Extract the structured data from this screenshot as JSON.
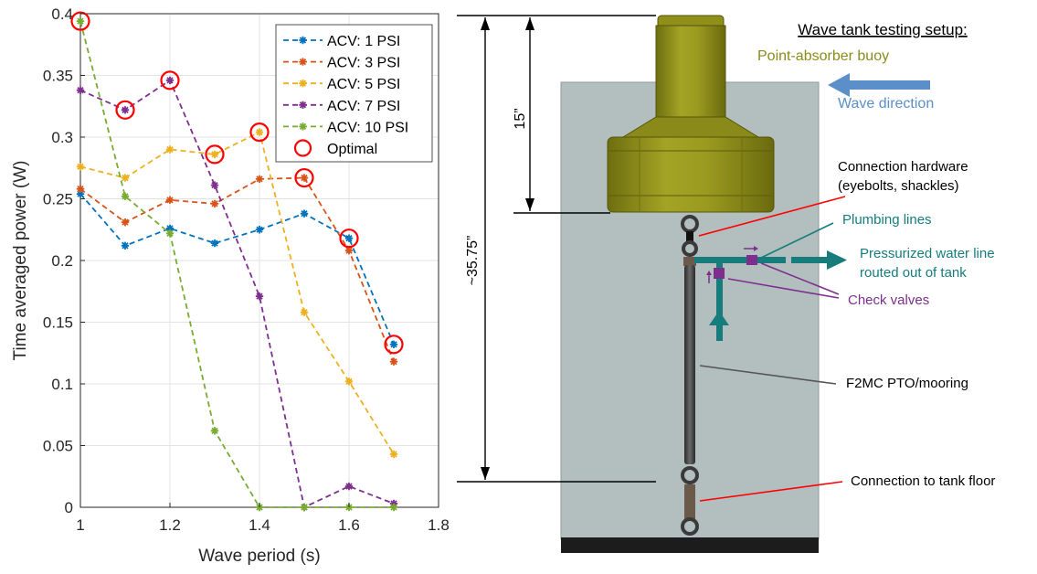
{
  "chart_data": {
    "type": "line",
    "xlabel": "Wave period (s)",
    "ylabel": "Time averaged power (W)",
    "xlim": [
      1,
      1.8
    ],
    "ylim": [
      0,
      0.4
    ],
    "xticks": [
      1,
      1.2,
      1.4,
      1.6,
      1.8
    ],
    "xtick_labels": [
      "1",
      "1.2",
      "1.4",
      "1.6",
      "1.8"
    ],
    "yticks": [
      0,
      0.05,
      0.1,
      0.15,
      0.2,
      0.25,
      0.3,
      0.35,
      0.4
    ],
    "ytick_labels": [
      "0",
      "0.05",
      "0.1",
      "0.15",
      "0.2",
      "0.25",
      "0.3",
      "0.35",
      "0.4"
    ],
    "grid": true,
    "legend_position": "top-right",
    "x": [
      1,
      1.1,
      1.2,
      1.3,
      1.4,
      1.5,
      1.6,
      1.7
    ],
    "series": [
      {
        "name": "ACV: 1 PSI",
        "color": "#0072BD",
        "values": [
          0.254,
          0.212,
          0.226,
          0.214,
          0.225,
          0.238,
          0.218,
          0.132
        ]
      },
      {
        "name": "ACV: 3 PSI",
        "color": "#D95319",
        "values": [
          0.258,
          0.231,
          0.249,
          0.246,
          0.266,
          0.267,
          0.208,
          0.118
        ]
      },
      {
        "name": "ACV: 5 PSI",
        "color": "#EDB120",
        "values": [
          0.276,
          0.267,
          0.29,
          0.286,
          0.304,
          0.158,
          0.102,
          0.043
        ]
      },
      {
        "name": "ACV: 7 PSI",
        "color": "#7E2F8E",
        "values": [
          0.338,
          0.322,
          0.346,
          0.261,
          0.171,
          0.0,
          0.017,
          0.003
        ]
      },
      {
        "name": "ACV: 10 PSI",
        "color": "#77AC30",
        "values": [
          0.394,
          0.252,
          0.222,
          0.062,
          0.0,
          0.0,
          0.0,
          0.0
        ]
      }
    ],
    "optimal": {
      "name": "Optimal",
      "color": "#FF0000",
      "points": [
        [
          1,
          0.394
        ],
        [
          1.1,
          0.322
        ],
        [
          1.2,
          0.346
        ],
        [
          1.3,
          0.286
        ],
        [
          1.4,
          0.304
        ],
        [
          1.5,
          0.267
        ],
        [
          1.6,
          0.218
        ],
        [
          1.7,
          0.132
        ]
      ]
    }
  },
  "diagram": {
    "title": "Wave tank testing setup:",
    "buoy_label": "Point-absorber buoy",
    "wave_direction_label": "Wave direction",
    "dim_small": "15”",
    "dim_large": "~35.75”",
    "connection_hardware_line1": "Connection hardware",
    "connection_hardware_line2": "(eyebolts, shackles)",
    "plumbing_label": "Plumbing lines",
    "pressurized_line1": "Pressurized water line",
    "pressurized_line2": "routed out of tank",
    "check_valves_label": "Check valves",
    "pto_label": "F2MC PTO/mooring",
    "tank_floor_label": "Connection to tank floor",
    "colors": {
      "buoy": "#8B8C1B",
      "wave_arrow": "#5B8FC9",
      "plumbing": "#167C7C",
      "valves": "#7E2F8E",
      "callout_red": "#FF0000",
      "tank_water": "#B3BEBE"
    }
  }
}
